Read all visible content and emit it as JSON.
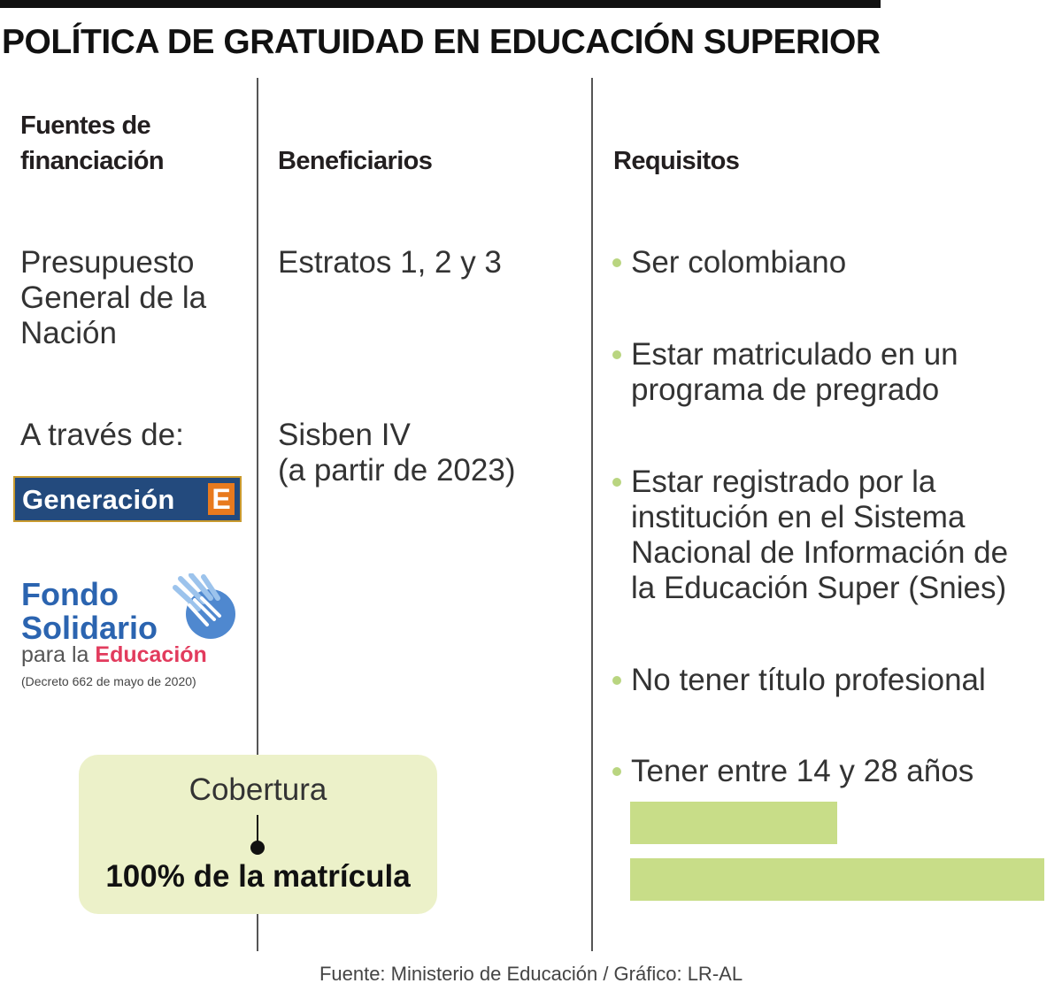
{
  "title": "POLÍTICA DE GRATUIDAD EN EDUCACIÓN SUPERIOR",
  "columns": {
    "fuentes": {
      "heading_lines": [
        "Fuentes de",
        "financiación"
      ],
      "items": [
        [
          "Presupuesto",
          "General de la",
          "Nación"
        ]
      ],
      "a_traves": "A través de:",
      "logos": {
        "generacion": {
          "word": "Generación",
          "letter": "E"
        },
        "fondo": {
          "line1": "Fondo",
          "line2": "Solidario",
          "para": "para la",
          "educacion": "Educación",
          "decreto": "(Decreto 662 de mayo de 2020)"
        }
      }
    },
    "beneficiarios": {
      "heading": "Beneficiarios",
      "items": [
        [
          "Estratos 1, 2 y 3"
        ],
        [
          "Sisben IV",
          "(a partir de 2023)"
        ]
      ]
    },
    "requisitos": {
      "heading": "Requisitos",
      "items": [
        [
          "Ser colombiano"
        ],
        [
          "Estar matriculado en un",
          "programa de pregrado"
        ],
        [
          "Estar registrado por la",
          "institución en el  Sistema",
          "Nacional de Información de",
          "la Educación Super (Snies)"
        ],
        [
          "No tener título profesional"
        ],
        [
          "Tener entre 14 y 28 años"
        ]
      ]
    }
  },
  "cobertura": {
    "label": "Cobertura",
    "value": "100% de la matrícula"
  },
  "source": "Fuente: Ministerio de Educación / Gráfico: LR-AL",
  "colors": {
    "accent_green": "#b9d580",
    "box_fill": "#ecf1c9",
    "bar_green": "#c8dd88",
    "generacion_blue": "#234a7d",
    "generacion_orange": "#e87a1e",
    "fondo_blue": "#2b64b0",
    "fondo_pink": "#e23b5d"
  }
}
